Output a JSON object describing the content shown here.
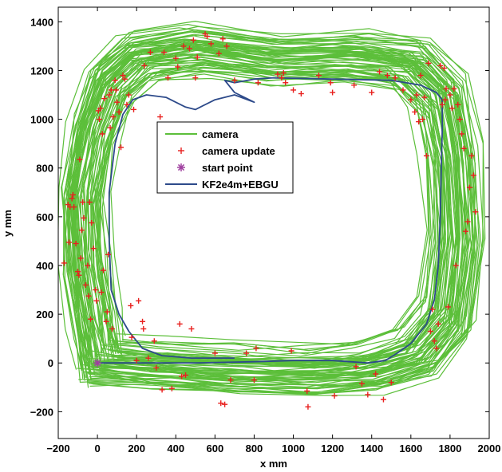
{
  "chart_data": {
    "type": "line",
    "title": "",
    "xlabel": "x mm",
    "ylabel": "y mm",
    "xlim": [
      -200,
      2000
    ],
    "ylim": [
      -310,
      1460
    ],
    "xticks": [
      -200,
      0,
      200,
      400,
      600,
      800,
      1000,
      1200,
      1400,
      1600,
      1800,
      2000
    ],
    "yticks": [
      -200,
      0,
      200,
      400,
      600,
      800,
      1000,
      1200,
      1400
    ],
    "xtick_labels": [
      "−200",
      "0",
      "200",
      "400",
      "600",
      "800",
      "1000",
      "1200",
      "1400",
      "1600",
      "1800",
      "2000"
    ],
    "ytick_labels": [
      "−200",
      "0",
      "200",
      "400",
      "600",
      "800",
      "1000",
      "1200",
      "1400"
    ],
    "grid": false,
    "legend_position": "center",
    "colors": {
      "camera": "#5cbf3a",
      "camera_update": "#e8201e",
      "start_point": "#a040a0",
      "kf": "#2d4a8a"
    },
    "series": [
      {
        "name": "camera",
        "style": "line",
        "loops": 70,
        "path": [
          [
            0,
            0
          ],
          [
            300,
            -20
          ],
          [
            700,
            -40
          ],
          [
            1100,
            -45
          ],
          [
            1400,
            -30
          ],
          [
            1640,
            30
          ],
          [
            1790,
            180
          ],
          [
            1840,
            500
          ],
          [
            1820,
            850
          ],
          [
            1760,
            1100
          ],
          [
            1600,
            1230
          ],
          [
            1300,
            1260
          ],
          [
            900,
            1250
          ],
          [
            500,
            1290
          ],
          [
            200,
            1260
          ],
          [
            50,
            1150
          ],
          [
            -40,
            950
          ],
          [
            -90,
            700
          ],
          [
            -80,
            400
          ],
          [
            -30,
            150
          ],
          [
            0,
            0
          ]
        ]
      },
      {
        "name": "camera update",
        "style": "marker",
        "marker": "+",
        "points": [
          [
            -170,
            410
          ],
          [
            -150,
            650
          ],
          [
            -145,
            495
          ],
          [
            -140,
            640
          ],
          [
            -130,
            675
          ],
          [
            -125,
            690
          ],
          [
            -120,
            640
          ],
          [
            -110,
            490
          ],
          [
            -100,
            375
          ],
          [
            -95,
            360
          ],
          [
            -90,
            835
          ],
          [
            -85,
            430
          ],
          [
            -80,
            545
          ],
          [
            -75,
            660
          ],
          [
            -70,
            595
          ],
          [
            -60,
            320
          ],
          [
            -50,
            400
          ],
          [
            -45,
            275
          ],
          [
            -40,
            660
          ],
          [
            -35,
            180
          ],
          [
            -30,
            575
          ],
          [
            -20,
            470
          ],
          [
            -10,
            300
          ],
          [
            -5,
            255
          ],
          [
            5,
            1035
          ],
          [
            10,
            1000
          ],
          [
            15,
            1045
          ],
          [
            20,
            290
          ],
          [
            25,
            940
          ],
          [
            30,
            380
          ],
          [
            35,
            1085
          ],
          [
            45,
            170
          ],
          [
            50,
            210
          ],
          [
            55,
            445
          ],
          [
            60,
            1100
          ],
          [
            65,
            965
          ],
          [
            70,
            1120
          ],
          [
            75,
            140
          ],
          [
            80,
            1010
          ],
          [
            90,
            1160
          ],
          [
            95,
            1120
          ],
          [
            100,
            1070
          ],
          [
            110,
            1030
          ],
          [
            120,
            885
          ],
          [
            130,
            1180
          ],
          [
            140,
            1165
          ],
          [
            150,
            1060
          ],
          [
            160,
            1100
          ],
          [
            170,
            235
          ],
          [
            175,
            105
          ],
          [
            185,
            1040
          ],
          [
            200,
            10
          ],
          [
            210,
            255
          ],
          [
            230,
            170
          ],
          [
            235,
            140
          ],
          [
            240,
            1220
          ],
          [
            260,
            20
          ],
          [
            270,
            1275
          ],
          [
            290,
            90
          ],
          [
            300,
            -20
          ],
          [
            320,
            1010
          ],
          [
            330,
            -110
          ],
          [
            340,
            1275
          ],
          [
            360,
            1170
          ],
          [
            380,
            -105
          ],
          [
            400,
            1250
          ],
          [
            410,
            1215
          ],
          [
            420,
            160
          ],
          [
            430,
            -55
          ],
          [
            440,
            1300
          ],
          [
            450,
            -50
          ],
          [
            470,
            1290
          ],
          [
            480,
            140
          ],
          [
            490,
            1325
          ],
          [
            500,
            1170
          ],
          [
            510,
            1255
          ],
          [
            550,
            1350
          ],
          [
            560,
            1340
          ],
          [
            580,
            1310
          ],
          [
            600,
            40
          ],
          [
            620,
            1270
          ],
          [
            630,
            -165
          ],
          [
            640,
            1330
          ],
          [
            650,
            -170
          ],
          [
            660,
            1300
          ],
          [
            680,
            -70
          ],
          [
            700,
            1160
          ],
          [
            760,
            40
          ],
          [
            800,
            -70
          ],
          [
            810,
            60
          ],
          [
            820,
            1150
          ],
          [
            920,
            1185
          ],
          [
            940,
            1170
          ],
          [
            950,
            1190
          ],
          [
            960,
            1150
          ],
          [
            990,
            50
          ],
          [
            1000,
            1120
          ],
          [
            1040,
            1105
          ],
          [
            1070,
            -115
          ],
          [
            1075,
            -180
          ],
          [
            1130,
            1180
          ],
          [
            1190,
            1150
          ],
          [
            1200,
            1110
          ],
          [
            1210,
            -135
          ],
          [
            1310,
            1140
          ],
          [
            1320,
            -15
          ],
          [
            1350,
            -85
          ],
          [
            1380,
            -130
          ],
          [
            1400,
            1110
          ],
          [
            1420,
            -45
          ],
          [
            1440,
            1195
          ],
          [
            1460,
            -150
          ],
          [
            1480,
            1180
          ],
          [
            1500,
            -80
          ],
          [
            1520,
            1170
          ],
          [
            1560,
            1120
          ],
          [
            1600,
            1080
          ],
          [
            1620,
            1030
          ],
          [
            1630,
            1100
          ],
          [
            1640,
            990
          ],
          [
            1650,
            1180
          ],
          [
            1660,
            1000
          ],
          [
            1670,
            1090
          ],
          [
            1680,
            850
          ],
          [
            1690,
            1230
          ],
          [
            1700,
            130
          ],
          [
            1710,
            220
          ],
          [
            1720,
            90
          ],
          [
            1730,
            60
          ],
          [
            1740,
            160
          ],
          [
            1750,
            1220
          ],
          [
            1760,
            1060
          ],
          [
            1770,
            1210
          ],
          [
            1775,
            1080
          ],
          [
            1780,
            1125
          ],
          [
            1790,
            230
          ],
          [
            1800,
            1100
          ],
          [
            1810,
            1045
          ],
          [
            1820,
            1125
          ],
          [
            1830,
            400
          ],
          [
            1840,
            1060
          ],
          [
            1850,
            1000
          ],
          [
            1860,
            940
          ],
          [
            1870,
            880
          ],
          [
            1880,
            540
          ],
          [
            1890,
            580
          ],
          [
            1900,
            720
          ],
          [
            1910,
            850
          ],
          [
            1920,
            770
          ],
          [
            1930,
            620
          ]
        ]
      },
      {
        "name": "start point",
        "style": "marker",
        "marker": "*",
        "points": [
          [
            0,
            0
          ]
        ]
      },
      {
        "name": "KF2e4m+EBGU",
        "style": "line",
        "points": [
          [
            0,
            0
          ],
          [
            200,
            0
          ],
          [
            500,
            0
          ],
          [
            800,
            5
          ],
          [
            1000,
            10
          ],
          [
            1200,
            10
          ],
          [
            1380,
            0
          ],
          [
            1470,
            10
          ],
          [
            1530,
            40
          ],
          [
            1600,
            80
          ],
          [
            1680,
            160
          ],
          [
            1720,
            260
          ],
          [
            1740,
            400
          ],
          [
            1750,
            600
          ],
          [
            1755,
            800
          ],
          [
            1760,
            950
          ],
          [
            1760,
            1080
          ],
          [
            1730,
            1110
          ],
          [
            1650,
            1140
          ],
          [
            1500,
            1160
          ],
          [
            1200,
            1165
          ],
          [
            900,
            1170
          ],
          [
            800,
            1165
          ],
          [
            700,
            1150
          ],
          [
            650,
            1160
          ],
          [
            700,
            1110
          ],
          [
            800,
            1070
          ],
          [
            700,
            1100
          ],
          [
            600,
            1080
          ],
          [
            500,
            1040
          ],
          [
            450,
            1050
          ],
          [
            350,
            1090
          ],
          [
            250,
            1100
          ],
          [
            180,
            1080
          ],
          [
            130,
            1020
          ],
          [
            90,
            900
          ],
          [
            60,
            700
          ],
          [
            60,
            500
          ],
          [
            70,
            300
          ],
          [
            110,
            200
          ],
          [
            160,
            130
          ],
          [
            230,
            60
          ],
          [
            330,
            30
          ],
          [
            480,
            20
          ],
          [
            700,
            20
          ]
        ]
      }
    ]
  }
}
